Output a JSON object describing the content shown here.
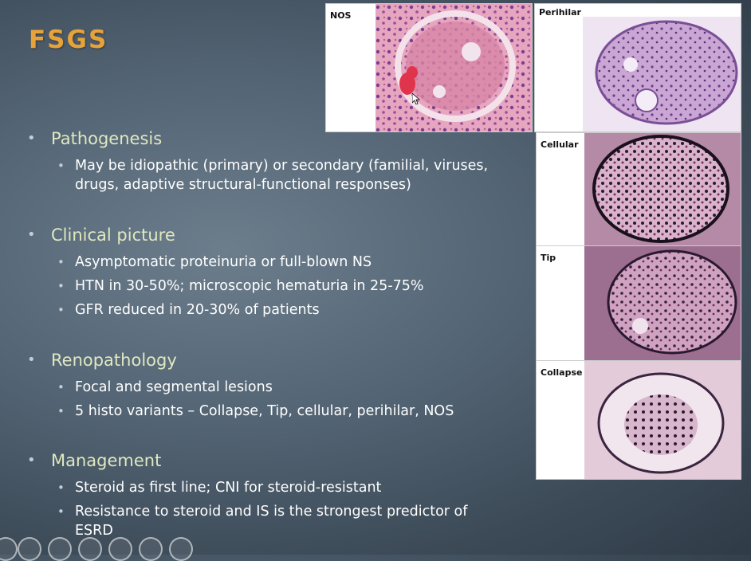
{
  "slide": {
    "title": "FSGS",
    "sections": [
      {
        "heading": "Pathogenesis",
        "items": [
          "May be idiopathic (primary) or secondary (familial, viruses,",
          "drugs, adaptive structural-functional responses)"
        ]
      },
      {
        "heading": "Clinical picture",
        "items": [
          "Asymptomatic proteinuria or full-blown NS",
          "HTN in 30-50%; microscopic hematuria in 25-75%",
          "GFR reduced in 20-30% of patients"
        ]
      },
      {
        "heading": "Renopathology",
        "items": [
          "Focal and segmental lesions",
          "5 histo variants – Collapse, Tip, cellular, perihilar, NOS"
        ]
      },
      {
        "heading": "Management",
        "items": [
          "Steroid as first line; CNI for steroid-resistant",
          "Resistance to steroid and IS is the strongest predictor of",
          "ESRD"
        ]
      }
    ]
  },
  "figure": {
    "labels": {
      "nos": "NOS",
      "perihilar": "Perihilar",
      "cellular": "Cellular",
      "tip": "Tip",
      "collapse": "Collapse"
    }
  },
  "colors": {
    "title": "#e8a23a",
    "heading": "#dfe8c0",
    "text": "#ffffff",
    "stain_pink": "#d98aa8",
    "stain_purple": "#8a5aa0"
  },
  "toolbar": {
    "icons": [
      "play-icon",
      "pen-icon",
      "slides-icon",
      "zoom-icon",
      "subtitle-icon",
      "more-icon"
    ]
  }
}
